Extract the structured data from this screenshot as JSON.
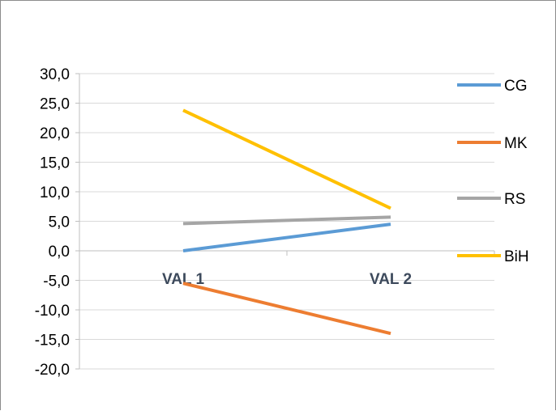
{
  "chart_data": {
    "type": "line",
    "title": "",
    "xlabel": "",
    "ylabel": "",
    "categories": [
      "VAL 1",
      "VAL 2"
    ],
    "ylim": [
      -20,
      30
    ],
    "yticks": [
      30,
      25,
      20,
      15,
      10,
      5,
      0,
      -5,
      -10,
      -15,
      -20
    ],
    "ytick_labels": [
      "30,0",
      "25,0",
      "20,0",
      "15,0",
      "10,0",
      "5,0",
      "0,0",
      "-5,0",
      "-10,0",
      "-15,0",
      "-20,0"
    ],
    "grid": true,
    "legend_position": "right",
    "series": [
      {
        "name": "CG",
        "color": "#5b9bd5",
        "values": [
          0.0,
          4.5
        ]
      },
      {
        "name": "MK",
        "color": "#ed7d31",
        "values": [
          -5.5,
          -14.0
        ]
      },
      {
        "name": "RS",
        "color": "#a5a5a5",
        "values": [
          4.6,
          5.7
        ]
      },
      {
        "name": "BiH",
        "color": "#ffc000",
        "values": [
          23.8,
          7.2
        ]
      }
    ]
  }
}
